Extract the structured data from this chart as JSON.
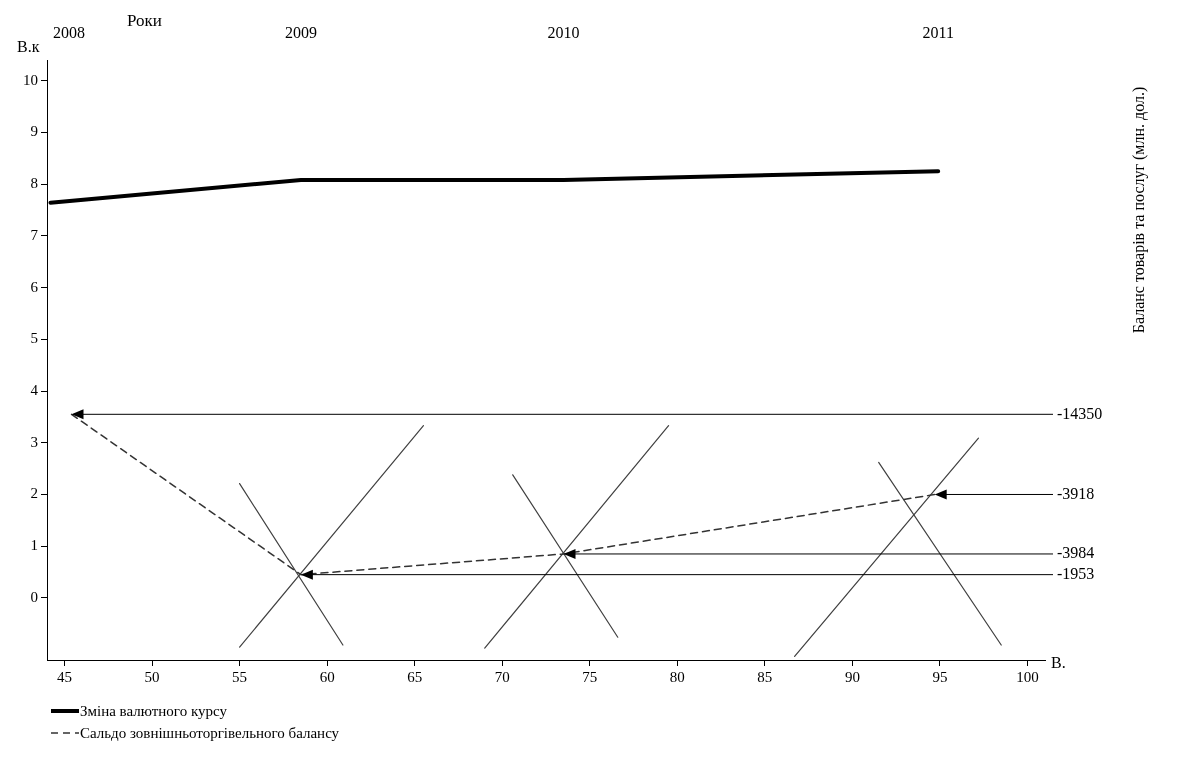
{
  "chart_data": {
    "type": "line",
    "xlabel": "В.",
    "ylabel": "В.к",
    "xlim": [
      44,
      101
    ],
    "xticks": [
      45,
      50,
      55,
      60,
      65,
      70,
      75,
      80,
      85,
      90,
      95,
      100
    ],
    "ylim": [
      -1.2,
      10.4
    ],
    "yticks": [
      0,
      1,
      2,
      3,
      4,
      5,
      6,
      7,
      8,
      9,
      10
    ],
    "legend": "bottom",
    "marker": "none",
    "series": [
      {
        "name": "Зміна валютного курсу",
        "color": "#000000",
        "x": [
          44.2,
          58.5,
          73.5,
          94.9
        ],
        "values": [
          7.64,
          8.08,
          8.08,
          8.25
        ]
      },
      {
        "name": "Сальдо зовнішньоторгівельного балансу",
        "color": "#333333",
        "line_style": "dashed",
        "x": [
          45.4,
          58.5,
          73.5,
          94.7
        ],
        "values": [
          3.55,
          0.45,
          0.85,
          2.0
        ]
      },
      {
        "color": "#404040",
        "x": [
          55.0,
          65.5
        ],
        "values": [
          -0.95,
          3.33
        ]
      },
      {
        "color": "#404040",
        "x": [
          55.0,
          60.9
        ],
        "values": [
          2.21,
          -0.91
        ]
      },
      {
        "color": "#404040",
        "x": [
          69.0,
          79.5
        ],
        "values": [
          -0.97,
          3.33
        ]
      },
      {
        "color": "#404040",
        "x": [
          70.6,
          76.6
        ],
        "values": [
          2.38,
          -0.76
        ]
      },
      {
        "color": "#404040",
        "x": [
          86.7,
          97.2
        ],
        "values": [
          -1.13,
          3.09
        ]
      },
      {
        "color": "#404040",
        "x": [
          91.5,
          98.5
        ],
        "values": [
          2.62,
          -0.91
        ]
      }
    ],
    "annotations": [
      "Роки",
      "Баланс товарів та послуг (млн. дол.)",
      "2008",
      "2009",
      "2010",
      "2011",
      {
        "text": "-14350",
        "x": 45.4,
        "y": 3.55
      },
      {
        "text": "-3918",
        "x": 94.7,
        "y": 2.0
      },
      {
        "text": "-3984",
        "x": 73.5,
        "y": 0.85
      },
      {
        "text": "-1953",
        "x": 58.5,
        "y": 0.45
      }
    ]
  }
}
